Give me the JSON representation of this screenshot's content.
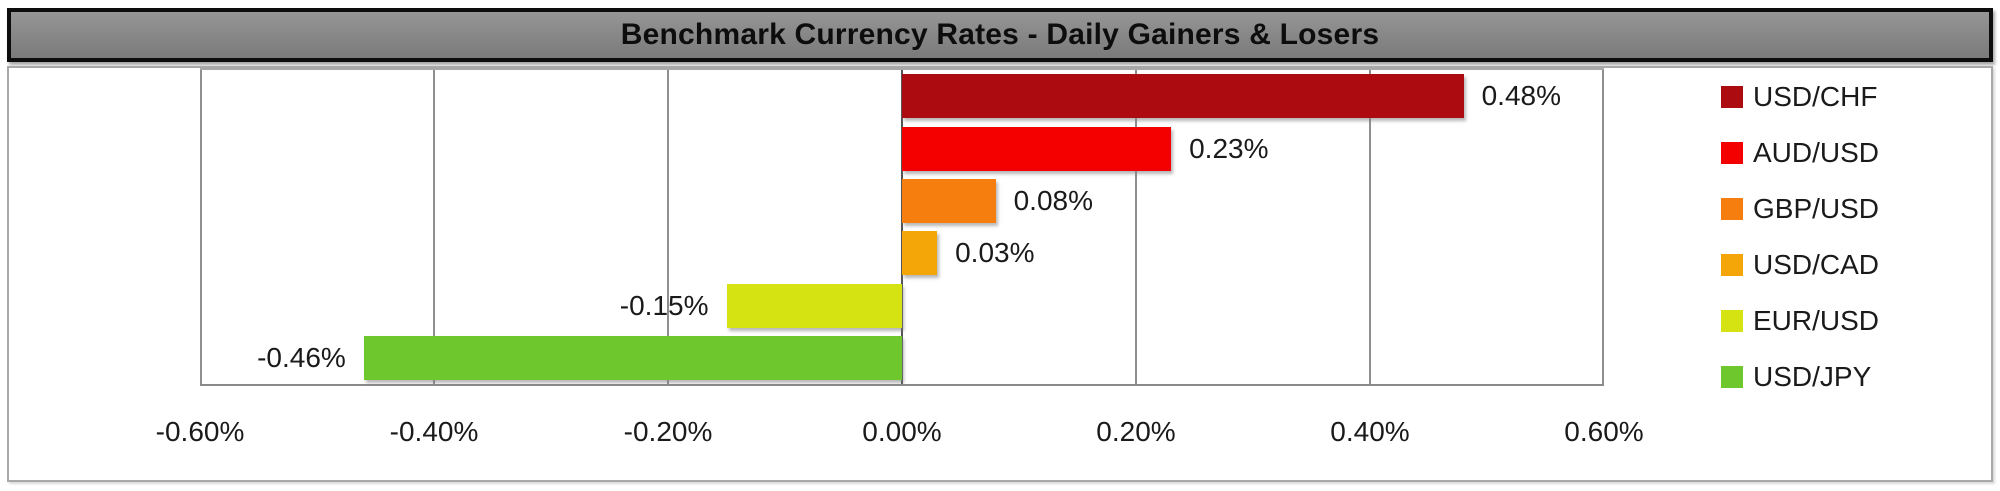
{
  "title": "Benchmark Currency Rates - Daily Gainers & Losers",
  "chart_data": {
    "type": "bar",
    "orientation": "horizontal",
    "title": "Benchmark Currency Rates - Daily Gainers & Losers",
    "categories": [
      "USD/CHF",
      "AUD/USD",
      "GBP/USD",
      "USD/CAD",
      "EUR/USD",
      "USD/JPY"
    ],
    "values": [
      0.48,
      0.23,
      0.08,
      0.03,
      -0.15,
      -0.46
    ],
    "value_labels": [
      "0.48%",
      "0.23%",
      "0.08%",
      "0.03%",
      "-0.15%",
      "-0.46%"
    ],
    "bar_colors": [
      "#AC0C10",
      "#F40001",
      "#F57E0E",
      "#F4A609",
      "#D5E312",
      "#6EC72D"
    ],
    "xlabel": "",
    "ylabel": "",
    "xlim": [
      -0.6,
      0.6
    ],
    "xticks": [
      -0.6,
      -0.4,
      -0.2,
      0,
      0.2,
      0.4,
      0.6
    ],
    "xtick_labels": [
      "-0.60%",
      "-0.40%",
      "-0.20%",
      "0.00%",
      "0.20%",
      "0.40%",
      "0.60%"
    ],
    "grid": true,
    "legend_position": "right",
    "legend": [
      {
        "label": "USD/CHF",
        "color": "#AC0C10"
      },
      {
        "label": "AUD/USD",
        "color": "#F40001"
      },
      {
        "label": "GBP/USD",
        "color": "#F57E0E"
      },
      {
        "label": "USD/CAD",
        "color": "#F4A609"
      },
      {
        "label": "EUR/USD",
        "color": "#D5E312"
      },
      {
        "label": "USD/JPY",
        "color": "#6EC72D"
      }
    ]
  },
  "colors": {
    "title_bg": "#868686",
    "title_border": "#0D0D0D",
    "title_text": "#0D0D0D",
    "chart_border": "#A9A9A9",
    "gridline": "#8F8F8F",
    "zero_line": "#555555",
    "axis_line": "#8A8A8A",
    "label_text": "#1A1A1A",
    "background": "#FFFFFF"
  }
}
